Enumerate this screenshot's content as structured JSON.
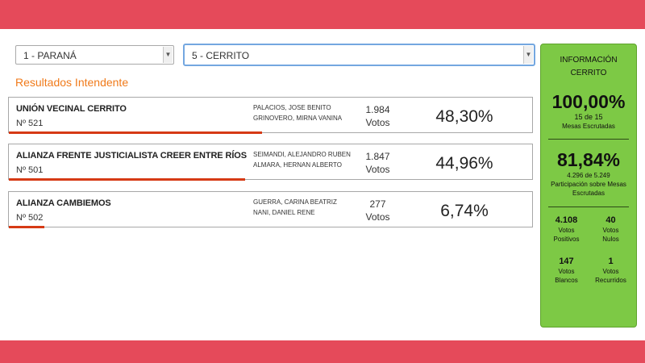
{
  "selects": {
    "department": "1 - PARANÁ",
    "city": "5 - CERRITO"
  },
  "section_title": "Resultados Intendente",
  "results": [
    {
      "party": "UNIÓN VECINAL CERRITO",
      "number": "Nº 521",
      "candidates": [
        "PALACIOS, JOSE BENITO",
        "GRINOVERO, MIRNA VANINA"
      ],
      "votes": "1.984",
      "votes_label": "Votos",
      "percent": "48,30%",
      "share": 48.3
    },
    {
      "party": "ALIANZA FRENTE JUSTICIALISTA CREER ENTRE RÍOS",
      "number": "Nº 501",
      "candidates": [
        "SEIMANDI, ALEJANDRO RUBEN",
        "ALMARA, HERNAN ALBERTO"
      ],
      "votes": "1.847",
      "votes_label": "Votos",
      "percent": "44,96%",
      "share": 44.96
    },
    {
      "party": "ALIANZA CAMBIEMOS",
      "number": "Nº 502",
      "candidates": [
        "GUERRA, CARINA BEATRIZ",
        "NANI, DANIEL RENE"
      ],
      "votes": "277",
      "votes_label": "Votos",
      "percent": "6,74%",
      "share": 6.74
    }
  ],
  "info": {
    "title_line1": "INFORMACIÓN",
    "title_line2": "CERRITO",
    "scrutiny_pct": "100,00%",
    "scrutiny_count": "15 de 15",
    "scrutiny_label": "Mesas Escrutadas",
    "participation_pct": "81,84%",
    "participation_count": "4.296 de 5.249",
    "participation_label": "Participación sobre Mesas Escrutadas",
    "stats": [
      {
        "value": "4.108",
        "label1": "Votos",
        "label2": "Positivos"
      },
      {
        "value": "40",
        "label1": "Votos",
        "label2": "Nulos"
      },
      {
        "value": "147",
        "label1": "Votos",
        "label2": "Blancos"
      },
      {
        "value": "1",
        "label1": "Votos",
        "label2": "Recurridos"
      }
    ]
  },
  "colors": {
    "background": "#e54a5a",
    "accent_orange": "#f07a1a",
    "bar_red": "#d63a15",
    "info_green": "#7dc945"
  }
}
